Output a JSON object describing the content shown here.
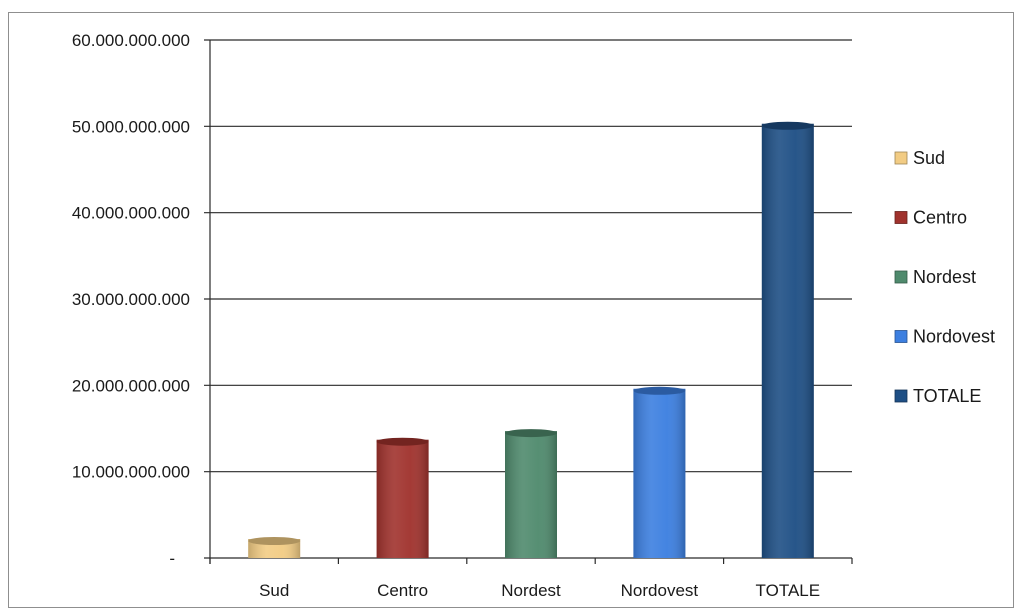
{
  "chart_data": {
    "type": "bar",
    "categories": [
      "Sud",
      "Centro",
      "Nordest",
      "Nordovest",
      "TOTALE"
    ],
    "values": [
      2200000000,
      13700000000,
      14700000000,
      19600000000,
      50300000000
    ],
    "colors": [
      "#f2cc84",
      "#a0322d",
      "#4f8a6d",
      "#3c7fe0",
      "#1e4f85"
    ],
    "title": "",
    "xlabel": "",
    "ylabel": "",
    "ylim": [
      0,
      60000000000
    ],
    "yticks": [
      {
        "value": 0,
        "label": "-"
      },
      {
        "value": 10000000000,
        "label": "10.000.000.000"
      },
      {
        "value": 20000000000,
        "label": "20.000.000.000"
      },
      {
        "value": 30000000000,
        "label": "30.000.000.000"
      },
      {
        "value": 40000000000,
        "label": "40.000.000.000"
      },
      {
        "value": 50000000000,
        "label": "50.000.000.000"
      },
      {
        "value": 60000000000,
        "label": "60.000.000.000"
      }
    ],
    "grid": true,
    "legend": {
      "placement": "right",
      "entries": [
        "Sud",
        "Centro",
        "Nordest",
        "Nordovest",
        "TOTALE"
      ]
    }
  }
}
